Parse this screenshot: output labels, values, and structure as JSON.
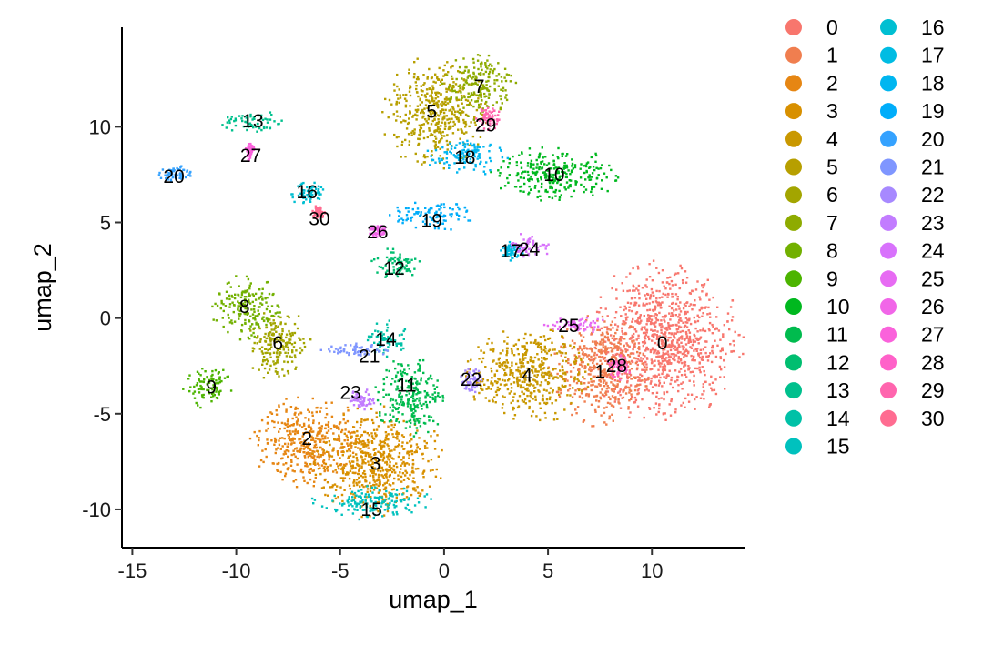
{
  "chart_data": {
    "type": "scatter",
    "xlabel": "umap_1",
    "ylabel": "umap_2",
    "xlim": [
      -15.5,
      14.5
    ],
    "ylim": [
      -12,
      15.2
    ],
    "x_ticks": [
      -15,
      -10,
      -5,
      0,
      5,
      10
    ],
    "y_ticks": [
      -10,
      -5,
      0,
      5,
      10
    ],
    "x_tick_labels": [
      "-15",
      "-10",
      "-5",
      "0",
      "5",
      "10"
    ],
    "y_tick_labels": [
      "-10",
      "-5",
      "0",
      "5",
      "10"
    ],
    "legend_position": "right",
    "legend_columns": 2,
    "clusters": [
      {
        "id": "0",
        "color": "#F8766D",
        "x": 10.5,
        "y": -1.2,
        "rx": 3.4,
        "ry": 3.8
      },
      {
        "id": "1",
        "color": "#F07E4F",
        "x": 7.5,
        "y": -2.7,
        "rx": 2.2,
        "ry": 2.6
      },
      {
        "id": "2",
        "color": "#E68613",
        "x": -6.5,
        "y": -6.4,
        "rx": 2.6,
        "ry": 2.2
      },
      {
        "id": "3",
        "color": "#D89000",
        "x": -3.3,
        "y": -7.5,
        "rx": 2.9,
        "ry": 2.6
      },
      {
        "id": "4",
        "color": "#C99800",
        "x": 4.0,
        "y": -2.9,
        "rx": 2.7,
        "ry": 2.3
      },
      {
        "id": "5",
        "color": "#B79F00",
        "x": -0.5,
        "y": 10.8,
        "rx": 2.3,
        "ry": 2.6
      },
      {
        "id": "6",
        "color": "#A3A500",
        "x": -8.0,
        "y": -1.3,
        "rx": 1.5,
        "ry": 1.7
      },
      {
        "id": "7",
        "color": "#8EAB00",
        "x": 1.7,
        "y": 12.2,
        "rx": 1.6,
        "ry": 1.6
      },
      {
        "id": "8",
        "color": "#72B000",
        "x": -9.6,
        "y": 0.6,
        "rx": 1.6,
        "ry": 1.5
      },
      {
        "id": "9",
        "color": "#4CB400",
        "x": -11.3,
        "y": -3.6,
        "rx": 1.2,
        "ry": 1.0
      },
      {
        "id": "10",
        "color": "#00B81F",
        "x": 5.3,
        "y": 7.6,
        "rx": 2.8,
        "ry": 1.3
      },
      {
        "id": "11",
        "color": "#00BB4E",
        "x": -1.7,
        "y": -4.0,
        "rx": 1.6,
        "ry": 2.0
      },
      {
        "id": "12",
        "color": "#00BE70",
        "x": -2.4,
        "y": 2.8,
        "rx": 1.2,
        "ry": 0.8
      },
      {
        "id": "13",
        "color": "#00C08D",
        "x": -9.3,
        "y": 10.3,
        "rx": 1.4,
        "ry": 0.6
      },
      {
        "id": "14",
        "color": "#00C1A7",
        "x": -2.8,
        "y": -1.1,
        "rx": 0.9,
        "ry": 0.9
      },
      {
        "id": "15",
        "color": "#00C1BE",
        "x": -3.5,
        "y": -9.6,
        "rx": 2.6,
        "ry": 0.8
      },
      {
        "id": "16",
        "color": "#00BFD2",
        "x": -6.6,
        "y": 6.6,
        "rx": 0.9,
        "ry": 0.6
      },
      {
        "id": "17",
        "color": "#00BCE3",
        "x": 3.2,
        "y": 3.6,
        "rx": 0.5,
        "ry": 0.5
      },
      {
        "id": "18",
        "color": "#00B6F0",
        "x": 1.0,
        "y": 8.5,
        "rx": 1.8,
        "ry": 0.9
      },
      {
        "id": "19",
        "color": "#00ADFA",
        "x": -0.6,
        "y": 5.4,
        "rx": 1.9,
        "ry": 0.7
      },
      {
        "id": "20",
        "color": "#35A2FF",
        "x": -13.0,
        "y": 7.6,
        "rx": 0.7,
        "ry": 0.4
      },
      {
        "id": "21",
        "color": "#7F96FF",
        "x": -4.2,
        "y": -1.6,
        "rx": 1.6,
        "ry": 0.35
      },
      {
        "id": "22",
        "color": "#A789FF",
        "x": 1.3,
        "y": -3.2,
        "rx": 0.5,
        "ry": 0.7
      },
      {
        "id": "23",
        "color": "#C27CFF",
        "x": -4.0,
        "y": -4.2,
        "rx": 0.6,
        "ry": 0.5
      },
      {
        "id": "24",
        "color": "#D872FC",
        "x": 4.0,
        "y": 3.8,
        "rx": 1.0,
        "ry": 0.6
      },
      {
        "id": "25",
        "color": "#E76BF3",
        "x": 6.3,
        "y": -0.3,
        "rx": 1.4,
        "ry": 0.4
      },
      {
        "id": "26",
        "color": "#F166E8",
        "x": -3.2,
        "y": 4.6,
        "rx": 0.4,
        "ry": 0.3
      },
      {
        "id": "27",
        "color": "#FA62DB",
        "x": -9.4,
        "y": 8.8,
        "rx": 0.2,
        "ry": 0.5
      },
      {
        "id": "28",
        "color": "#FF61C9",
        "x": 8.3,
        "y": -2.5,
        "rx": 0.6,
        "ry": 0.6
      },
      {
        "id": "29",
        "color": "#FF65AE",
        "x": 2.0,
        "y": 10.5,
        "rx": 0.6,
        "ry": 0.6
      },
      {
        "id": "30",
        "color": "#FF6C91",
        "x": -6.1,
        "y": 5.6,
        "rx": 0.3,
        "ry": 0.3
      }
    ],
    "labels": [
      {
        "text": "0",
        "x": 10.5,
        "y": -1.3
      },
      {
        "text": "1",
        "x": 7.5,
        "y": -2.8
      },
      {
        "text": "2",
        "x": -6.6,
        "y": -6.3
      },
      {
        "text": "3",
        "x": -3.3,
        "y": -7.6
      },
      {
        "text": "4",
        "x": 4.0,
        "y": -3.0
      },
      {
        "text": "5",
        "x": -0.6,
        "y": 10.8
      },
      {
        "text": "6",
        "x": -8.0,
        "y": -1.3
      },
      {
        "text": "7",
        "x": 1.7,
        "y": 12.1
      },
      {
        "text": "8",
        "x": -9.6,
        "y": 0.6
      },
      {
        "text": "9",
        "x": -11.2,
        "y": -3.6
      },
      {
        "text": "10",
        "x": 5.3,
        "y": 7.5
      },
      {
        "text": "11",
        "x": -1.8,
        "y": -3.5
      },
      {
        "text": "12",
        "x": -2.4,
        "y": 2.6
      },
      {
        "text": "13",
        "x": -9.2,
        "y": 10.3
      },
      {
        "text": "14",
        "x": -2.8,
        "y": -1.1
      },
      {
        "text": "15",
        "x": -3.5,
        "y": -10.0
      },
      {
        "text": "16",
        "x": -6.6,
        "y": 6.6
      },
      {
        "text": "17",
        "x": 3.2,
        "y": 3.5
      },
      {
        "text": "18",
        "x": 1.0,
        "y": 8.4
      },
      {
        "text": "19",
        "x": -0.6,
        "y": 5.1
      },
      {
        "text": "20",
        "x": -13.0,
        "y": 7.4
      },
      {
        "text": "21",
        "x": -3.6,
        "y": -2.0
      },
      {
        "text": "22",
        "x": 1.3,
        "y": -3.2
      },
      {
        "text": "23",
        "x": -4.5,
        "y": -3.9
      },
      {
        "text": "24",
        "x": 4.1,
        "y": 3.6
      },
      {
        "text": "25",
        "x": 6.0,
        "y": -0.4
      },
      {
        "text": "26",
        "x": -3.2,
        "y": 4.5
      },
      {
        "text": "27",
        "x": -9.3,
        "y": 8.5
      },
      {
        "text": "28",
        "x": 8.3,
        "y": -2.5
      },
      {
        "text": "29",
        "x": 2.0,
        "y": 10.1
      },
      {
        "text": "30",
        "x": -6.0,
        "y": 5.2
      }
    ]
  }
}
